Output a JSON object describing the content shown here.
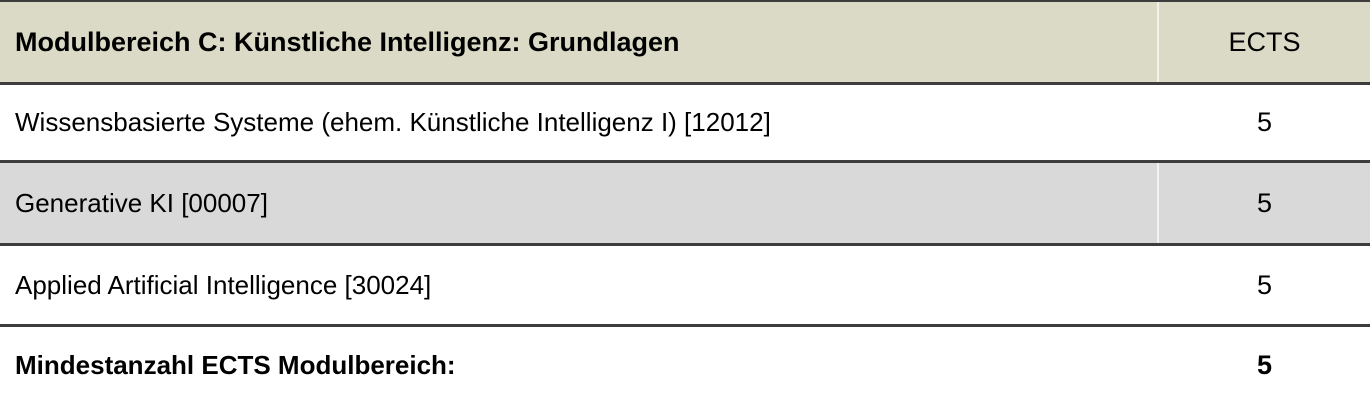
{
  "table": {
    "header": {
      "title": "Modulbereich C: Künstliche Intelligenz: Grundlagen",
      "ects_label": "ECTS"
    },
    "rows": [
      {
        "name": "Wissensbasierte Systeme (ehem. Künstliche Intelligenz I) [12012]",
        "ects": "5",
        "shaded": false,
        "bold": false
      },
      {
        "name": "Generative KI [00007]",
        "ects": "5",
        "shaded": true,
        "bold": false
      },
      {
        "name": "Applied Artificial Intelligence [30024]",
        "ects": "5",
        "shaded": false,
        "bold": false
      },
      {
        "name": "Mindestanzahl ECTS Modulbereich:",
        "ects": "5",
        "shaded": false,
        "bold": true
      }
    ],
    "colors": {
      "header_bg": "#dadac6",
      "shaded_row_bg": "#d9d9d9",
      "border": "#3d3d3d",
      "text": "#000000"
    }
  }
}
